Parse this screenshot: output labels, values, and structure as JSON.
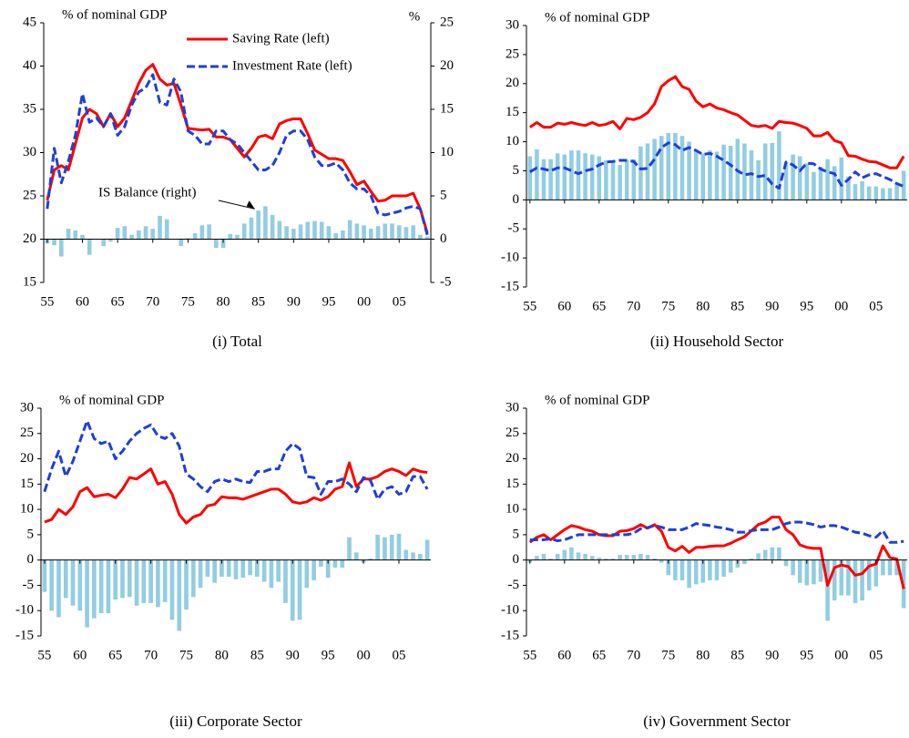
{
  "chart_data": [
    {
      "type": "combo",
      "title": "(i) Total",
      "ylabel": "% of nominal GDP",
      "y2label": "%",
      "annotation": "IS Balance (right)",
      "categories": [
        "55",
        null,
        null,
        null,
        null,
        "60",
        null,
        null,
        null,
        null,
        "65",
        null,
        null,
        null,
        null,
        "70",
        null,
        null,
        null,
        null,
        "75",
        null,
        null,
        null,
        null,
        "80",
        null,
        null,
        null,
        null,
        "85",
        null,
        null,
        null,
        null,
        "90",
        null,
        null,
        null,
        null,
        "95",
        null,
        null,
        null,
        null,
        "00",
        null,
        null,
        null,
        null,
        "05",
        null,
        null,
        null,
        null
      ],
      "ylim": [
        15,
        45
      ],
      "yticks": [
        15,
        20,
        25,
        30,
        35,
        40,
        45
      ],
      "y2lim": [
        -5,
        25
      ],
      "y2ticks": [
        -5,
        0,
        5,
        10,
        15,
        20,
        25
      ],
      "series": [
        {
          "name": "Saving Rate (left)",
          "type": "line",
          "color": "#ff0000",
          "dashed": false,
          "values": [
            24.5,
            28,
            28.5,
            28,
            31,
            34,
            35,
            34.5,
            33,
            34.5,
            33,
            34,
            36,
            38,
            39.5,
            40.2,
            38.5,
            37.8,
            38,
            35.5,
            32.8,
            32.7,
            32.6,
            32.7,
            31.8,
            31.8,
            31.5,
            30.5,
            29.5,
            30.5,
            31.8,
            32,
            31.6,
            33.3,
            33.7,
            33.9,
            33.9,
            32.2,
            30.3,
            29.8,
            29.3,
            29.3,
            29.1,
            27.8,
            26.3,
            26.7,
            25.5,
            24.4,
            24.5,
            25,
            25,
            25,
            25.3,
            23.5,
            20.7
          ]
        },
        {
          "name": "Investment Rate (left)",
          "type": "line",
          "color": "#1f3fd8",
          "dashed": true,
          "values": [
            23.5,
            30.5,
            26.5,
            29,
            32,
            36.8,
            33.5,
            34,
            33,
            34.5,
            32,
            33,
            35.5,
            37,
            37.5,
            39,
            35.8,
            35.5,
            38.5,
            37,
            32.5,
            32,
            31,
            31,
            32.5,
            32.5,
            31.5,
            31,
            30,
            29,
            28,
            28,
            28.5,
            30,
            32,
            32.5,
            32.5,
            31.5,
            29.5,
            28.5,
            28.5,
            28.8,
            28,
            26.5,
            25.8,
            25.8,
            25,
            23,
            22.8,
            23,
            23.2,
            23.6,
            23.8,
            23.5,
            20.5
          ]
        },
        {
          "type": "bar",
          "axis": "y2",
          "color": "#92cde0",
          "values": [
            -0.5,
            -0.7,
            -2,
            1.2,
            1,
            0.5,
            -1.8,
            0,
            -0.8,
            -0.3,
            1.3,
            1.5,
            0.5,
            1,
            1.5,
            1.2,
            2.7,
            2.3,
            0,
            -0.8,
            0.1,
            0.7,
            1.6,
            1.7,
            -1,
            -1,
            0.6,
            0.5,
            1.8,
            2.5,
            3.3,
            3.8,
            2.8,
            2.1,
            1.5,
            1.2,
            1.7,
            2,
            2.1,
            2,
            1.5,
            0.7,
            1,
            2.2,
            1.8,
            1.6,
            1.2,
            1.5,
            1.8,
            1.8,
            1.6,
            1.4,
            1.6,
            0.5,
            0.3
          ]
        }
      ]
    },
    {
      "type": "combo",
      "title": "(ii) Household Sector",
      "ylabel": "% of nominal GDP",
      "categories": [
        "55",
        null,
        null,
        null,
        null,
        "60",
        null,
        null,
        null,
        null,
        "65",
        null,
        null,
        null,
        null,
        "70",
        null,
        null,
        null,
        null,
        "75",
        null,
        null,
        null,
        null,
        "80",
        null,
        null,
        null,
        null,
        "85",
        null,
        null,
        null,
        null,
        "90",
        null,
        null,
        null,
        null,
        "95",
        null,
        null,
        null,
        null,
        "00",
        null,
        null,
        null,
        null,
        "05",
        null,
        null,
        null,
        null
      ],
      "ylim": [
        -15,
        30
      ],
      "yticks": [
        -15,
        -10,
        -5,
        0,
        5,
        10,
        15,
        20,
        25,
        30
      ],
      "series": [
        {
          "type": "bar",
          "color": "#92cde0",
          "values": [
            7.5,
            8.7,
            7,
            7,
            8,
            7.8,
            8.5,
            8.5,
            8,
            7.8,
            7.5,
            6.8,
            6.5,
            6,
            6.8,
            7,
            9.2,
            9.7,
            10.5,
            11,
            11.5,
            11.5,
            11,
            10,
            8.5,
            8,
            8.5,
            8.3,
            9.5,
            9.3,
            10.5,
            9.7,
            8.5,
            6.8,
            9.7,
            9.8,
            11.8,
            6.5,
            7.8,
            7.5,
            6.3,
            4.8,
            5.7,
            7,
            5.8,
            7.3,
            4,
            2.7,
            3.2,
            2.3,
            2.3,
            2,
            2,
            2.8,
            5
          ]
        },
        {
          "type": "line",
          "color": "#ff0000",
          "dashed": false,
          "values": [
            12.5,
            13.3,
            12.5,
            12.5,
            13.2,
            13,
            13.3,
            13,
            12.8,
            13.3,
            12.8,
            13,
            13.5,
            12.2,
            14,
            13.8,
            14.2,
            15,
            16.5,
            19.5,
            20.5,
            21.2,
            19.5,
            19,
            17,
            16,
            16.5,
            15.8,
            15.5,
            15,
            14.6,
            13.7,
            12.8,
            12.6,
            12.8,
            12.3,
            13.5,
            13.3,
            13.2,
            12.8,
            12.3,
            11,
            11,
            11.6,
            10.2,
            9.8,
            7.6,
            7.5,
            7,
            6.6,
            6.5,
            6,
            5.5,
            5.5,
            7.5
          ]
        },
        {
          "type": "line",
          "color": "#1f3fd8",
          "dashed": true,
          "values": [
            4.8,
            5.5,
            5.3,
            5,
            5.5,
            5.5,
            5,
            4.5,
            5,
            5.3,
            6,
            6.5,
            6.6,
            6.8,
            6.8,
            6.6,
            5.3,
            5.4,
            7,
            9,
            9.8,
            9.5,
            8.5,
            9,
            8.5,
            7.8,
            8,
            7.5,
            6.8,
            6,
            5,
            4.3,
            4.5,
            4,
            4.2,
            2.7,
            2,
            6.5,
            6,
            5,
            6.3,
            6.2,
            5.3,
            4.8,
            4.5,
            2.5,
            3.5,
            4.8,
            3.8,
            4.3,
            4.5,
            4,
            3.5,
            2.8,
            2.3
          ]
        }
      ]
    },
    {
      "type": "combo",
      "title": "(iii) Corporate Sector",
      "ylabel": "% of nominal GDP",
      "categories": [
        "55",
        null,
        null,
        null,
        null,
        "60",
        null,
        null,
        null,
        null,
        "65",
        null,
        null,
        null,
        null,
        "70",
        null,
        null,
        null,
        null,
        "75",
        null,
        null,
        null,
        null,
        "80",
        null,
        null,
        null,
        null,
        "85",
        null,
        null,
        null,
        null,
        "90",
        null,
        null,
        null,
        null,
        "95",
        null,
        null,
        null,
        null,
        "00",
        null,
        null,
        null,
        null,
        "05",
        null,
        null,
        null,
        null
      ],
      "ylim": [
        -15,
        30
      ],
      "yticks": [
        -15,
        -10,
        -5,
        0,
        5,
        10,
        15,
        20,
        25,
        30
      ],
      "series": [
        {
          "type": "bar",
          "color": "#92cde0",
          "values": [
            -6.3,
            -10,
            -11.3,
            -7.5,
            -9,
            -10,
            -13.3,
            -11.5,
            -10.5,
            -10.5,
            -7.8,
            -7.5,
            -7.3,
            -9,
            -8.5,
            -8.5,
            -9.3,
            -8.3,
            -11.8,
            -14,
            -9.8,
            -7.3,
            -5.5,
            -3.3,
            -4.5,
            -3.3,
            -3.3,
            -3.8,
            -3.5,
            -3,
            -3.3,
            -4.3,
            -5.5,
            -4.3,
            -8.5,
            -12,
            -11.8,
            -5.5,
            -4,
            -1.3,
            -3.5,
            -1.5,
            -1.5,
            4.5,
            1.5,
            -0.5,
            0.3,
            5,
            4.5,
            5,
            5.2,
            2,
            1.5,
            1.2,
            4
          ]
        },
        {
          "type": "line",
          "color": "#ff0000",
          "dashed": false,
          "values": [
            7.5,
            8,
            10,
            9,
            10.5,
            13.5,
            14.3,
            12.5,
            12.8,
            13,
            12.3,
            14,
            16.3,
            16,
            17,
            18,
            15,
            15.5,
            13,
            9,
            7.3,
            8.5,
            9,
            10.7,
            11,
            12.5,
            12.3,
            12.3,
            12,
            12.5,
            13,
            13.5,
            14,
            14,
            13,
            11.5,
            11.2,
            11.5,
            12.3,
            11.8,
            12.5,
            14,
            14.5,
            19.2,
            14.5,
            16,
            16,
            16.5,
            17.5,
            18,
            17.5,
            16.7,
            18,
            17.5,
            17.3
          ]
        },
        {
          "type": "line",
          "color": "#1f3fd8",
          "dashed": true,
          "values": [
            13.5,
            18,
            21.5,
            16.5,
            19.5,
            23.5,
            27.5,
            24,
            23,
            23.5,
            20,
            21.5,
            23.5,
            25,
            26,
            26.7,
            24.5,
            24,
            25,
            22.5,
            17,
            16,
            14.5,
            13.5,
            15.5,
            16,
            15.5,
            16,
            15.5,
            15.3,
            17.5,
            17.5,
            18,
            18,
            21.5,
            23,
            22,
            16.5,
            16.3,
            13,
            15.5,
            15.5,
            16,
            15,
            13.5,
            16.3,
            15.7,
            12,
            14,
            14.5,
            13,
            13.5,
            16.5,
            16.5,
            14
          ]
        }
      ]
    },
    {
      "type": "combo",
      "title": "(iv) Government Sector",
      "ylabel": "% of nominal GDP",
      "categories": [
        "55",
        null,
        null,
        null,
        null,
        "60",
        null,
        null,
        null,
        null,
        "65",
        null,
        null,
        null,
        null,
        "70",
        null,
        null,
        null,
        null,
        "75",
        null,
        null,
        null,
        null,
        "80",
        null,
        null,
        null,
        null,
        "85",
        null,
        null,
        null,
        null,
        "90",
        null,
        null,
        null,
        null,
        "95",
        null,
        null,
        null,
        null,
        "00",
        null,
        null,
        null,
        null,
        "05",
        null,
        null,
        null,
        null
      ],
      "ylim": [
        -15,
        30
      ],
      "yticks": [
        -15,
        -10,
        -5,
        0,
        5,
        10,
        15,
        20,
        25,
        30
      ],
      "series": [
        {
          "type": "bar",
          "color": "#92cde0",
          "values": [
            -0.5,
            0.8,
            1.2,
            0.3,
            1.2,
            2,
            2.5,
            1.5,
            1.2,
            0.8,
            0.5,
            0.3,
            0.3,
            1,
            1,
            1,
            1.2,
            1,
            0.3,
            -0.5,
            -3,
            -4,
            -4,
            -5.5,
            -4.8,
            -4.5,
            -4,
            -4,
            -3.3,
            -2.5,
            -1.5,
            -0.8,
            0.3,
            1.3,
            2,
            2.5,
            2.5,
            -1.2,
            -3,
            -4.5,
            -5,
            -4.8,
            -4.3,
            -12,
            -8,
            -7,
            -7,
            -8.5,
            -8,
            -6,
            -5.2,
            -3,
            -3,
            -3,
            -9.5
          ]
        },
        {
          "type": "line",
          "color": "#ff0000",
          "dashed": false,
          "values": [
            3.5,
            4.5,
            5,
            4,
            5,
            6,
            6.8,
            6.5,
            6,
            5.7,
            5,
            4.8,
            4.8,
            5.7,
            5.8,
            6.2,
            7,
            6.3,
            7,
            5.7,
            2.5,
            1.8,
            2.7,
            1.5,
            2.5,
            2.5,
            2.7,
            2.8,
            2.8,
            3.3,
            4,
            4.6,
            5.8,
            7,
            7.5,
            8.5,
            8.5,
            6,
            5,
            3,
            2.5,
            2.3,
            2.3,
            -5,
            -1.5,
            -1,
            -1.3,
            -3,
            -2.7,
            -1.2,
            -0.8,
            2.8,
            0.5,
            0.2,
            -5.7
          ]
        },
        {
          "type": "line",
          "color": "#1f3fd8",
          "dashed": true,
          "values": [
            4,
            4,
            4,
            4.2,
            3.8,
            4,
            4.5,
            5,
            5,
            5,
            5,
            5,
            5,
            5,
            5,
            5.3,
            6.2,
            6.4,
            6.8,
            6.5,
            6,
            6,
            6,
            6.5,
            7.2,
            7,
            6.8,
            6.5,
            6.3,
            6,
            5.5,
            5.5,
            5.8,
            6,
            6,
            6,
            6.5,
            7.2,
            7.5,
            7.5,
            7.3,
            7,
            6.5,
            6.8,
            6.8,
            6.5,
            6,
            5.5,
            5.3,
            4.8,
            4.5,
            5.8,
            3.5,
            3.5,
            3.7
          ]
        }
      ]
    }
  ]
}
